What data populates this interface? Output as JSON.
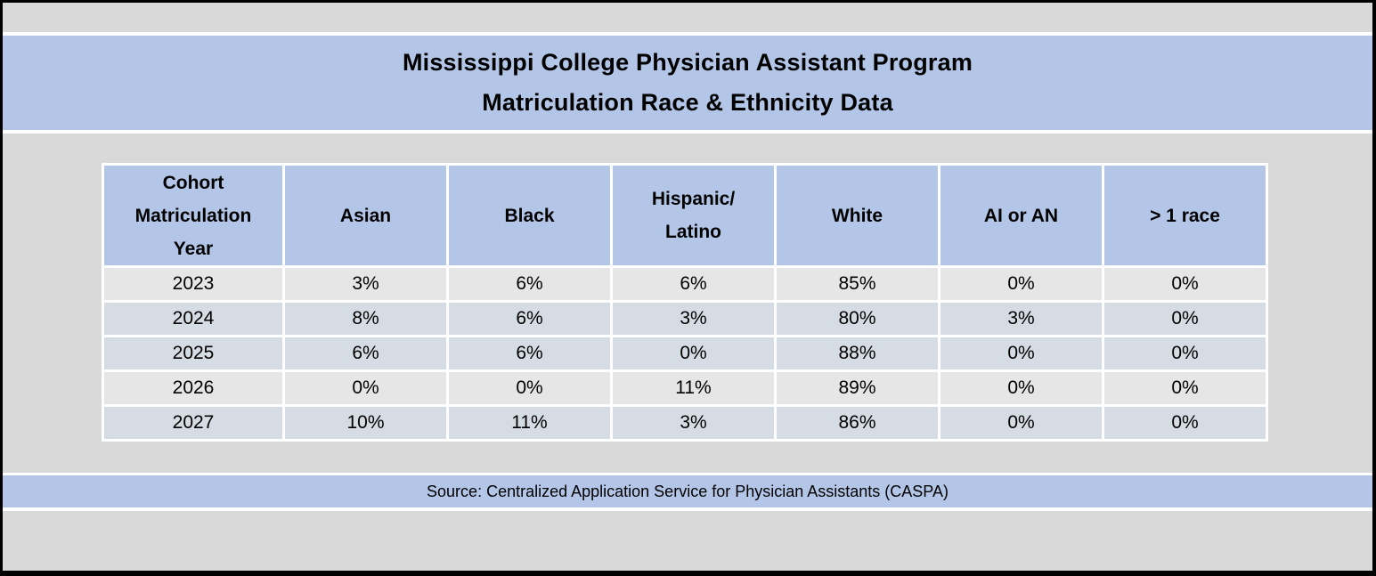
{
  "title": {
    "line1": "Mississippi College Physician Assistant Program",
    "line2": "Matriculation Race & Ethnicity Data"
  },
  "source": {
    "text": "Source: Centralized Application Service for Physician Assistants (CASPA)"
  },
  "colors": {
    "banner_blue": "#b4c6e7",
    "band_blue": "#d6dce4",
    "band_gray": "#e7e6e6",
    "page_gray": "#d9d9d9",
    "gridline_white": "#ffffff",
    "border_black": "#000000",
    "text_black": "#000000"
  },
  "table": {
    "headers": [
      "Cohort\nMatriculation\nYear",
      "Asian",
      "Black",
      "Hispanic/\nLatino",
      "White",
      "AI or AN",
      "> 1 race"
    ],
    "rows": [
      {
        "cells": [
          "2023",
          "3%",
          "6%",
          "6%",
          "85%",
          "0%",
          "0%"
        ],
        "band": "gray"
      },
      {
        "cells": [
          "2024",
          "8%",
          "6%",
          "3%",
          "80%",
          "3%",
          "0%"
        ],
        "band": "blue"
      },
      {
        "cells": [
          "2025",
          "6%",
          "6%",
          "0%",
          "88%",
          "0%",
          "0%"
        ],
        "band": "blue"
      },
      {
        "cells": [
          "2026",
          "0%",
          "0%",
          "11%",
          "89%",
          "0%",
          "0%"
        ],
        "band": "gray"
      },
      {
        "cells": [
          "2027",
          "10%",
          "11%",
          "3%",
          "86%",
          "0%",
          "0%"
        ],
        "band": "blue"
      }
    ]
  },
  "chart_data": {
    "type": "table",
    "title": "Mississippi College Physician Assistant Program Matriculation Race & Ethnicity Data",
    "columns": [
      "Cohort Matriculation Year",
      "Asian",
      "Black",
      "Hispanic/Latino",
      "White",
      "AI or AN",
      "> 1 race"
    ],
    "rows": [
      [
        "2023",
        "3%",
        "6%",
        "6%",
        "85%",
        "0%",
        "0%"
      ],
      [
        "2024",
        "8%",
        "6%",
        "3%",
        "80%",
        "3%",
        "0%"
      ],
      [
        "2025",
        "6%",
        "6%",
        "0%",
        "88%",
        "0%",
        "0%"
      ],
      [
        "2026",
        "0%",
        "0%",
        "11%",
        "89%",
        "0%",
        "0%"
      ],
      [
        "2027",
        "10%",
        "11%",
        "3%",
        "86%",
        "0%",
        "0%"
      ]
    ],
    "source": "Source: Centralized Application Service for Physician Assistants (CASPA)"
  }
}
